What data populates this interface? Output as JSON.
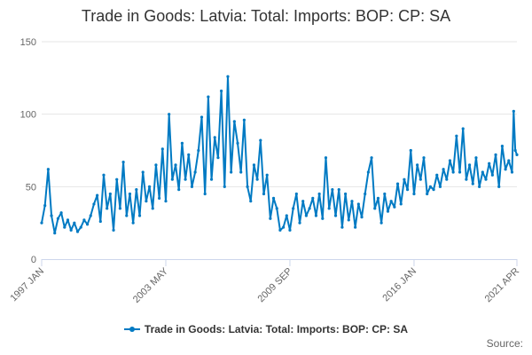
{
  "chart_data": {
    "type": "line",
    "title": "Trade in Goods: Latvia: Total: Imports: BOP: CP: SA",
    "xlabel": "",
    "ylabel": "",
    "ylim": [
      0,
      150
    ],
    "y_ticks": [
      0,
      50,
      100,
      150
    ],
    "x_tick_labels": [
      "1997 JAN",
      "2003 MAY",
      "2009 SEP",
      "2016 JAN",
      "2021 APR"
    ],
    "x_range": [
      "1997-01",
      "2021-04"
    ],
    "x_label_rotation_deg": -45,
    "grid": "horizontal",
    "legend_position": "bottom",
    "marker": "circle",
    "series": [
      {
        "name": "Trade in Goods: Latvia: Total: Imports: BOP: CP: SA",
        "color": "#007ac3",
        "x": [
          "1997-01",
          "1997-03",
          "1997-05",
          "1997-07",
          "1997-09",
          "1997-11",
          "1998-01",
          "1998-03",
          "1998-05",
          "1998-07",
          "1998-09",
          "1998-11",
          "1999-01",
          "1999-03",
          "1999-05",
          "1999-07",
          "1999-09",
          "1999-11",
          "2000-01",
          "2000-03",
          "2000-05",
          "2000-07",
          "2000-09",
          "2000-11",
          "2001-01",
          "2001-03",
          "2001-05",
          "2001-07",
          "2001-09",
          "2001-11",
          "2002-01",
          "2002-03",
          "2002-05",
          "2002-07",
          "2002-09",
          "2002-11",
          "2003-01",
          "2003-03",
          "2003-05",
          "2003-07",
          "2003-09",
          "2003-11",
          "2004-01",
          "2004-03",
          "2004-05",
          "2004-07",
          "2004-09",
          "2004-11",
          "2005-01",
          "2005-03",
          "2005-05",
          "2005-07",
          "2005-09",
          "2005-11",
          "2006-01",
          "2006-03",
          "2006-05",
          "2006-07",
          "2006-09",
          "2006-11",
          "2007-01",
          "2007-03",
          "2007-05",
          "2007-07",
          "2007-09",
          "2007-11",
          "2008-01",
          "2008-03",
          "2008-05",
          "2008-07",
          "2008-09",
          "2008-11",
          "2009-01",
          "2009-03",
          "2009-05",
          "2009-07",
          "2009-09",
          "2009-11",
          "2010-01",
          "2010-03",
          "2010-05",
          "2010-07",
          "2010-09",
          "2010-11",
          "2011-01",
          "2011-03",
          "2011-05",
          "2011-07",
          "2011-09",
          "2011-11",
          "2012-01",
          "2012-03",
          "2012-05",
          "2012-07",
          "2012-09",
          "2012-11",
          "2013-01",
          "2013-03",
          "2013-05",
          "2013-07",
          "2013-09",
          "2013-11",
          "2014-01",
          "2014-03",
          "2014-05",
          "2014-07",
          "2014-09",
          "2014-11",
          "2015-01",
          "2015-03",
          "2015-05",
          "2015-07",
          "2015-09",
          "2015-11",
          "2016-01",
          "2016-03",
          "2016-05",
          "2016-07",
          "2016-09",
          "2016-11",
          "2017-01",
          "2017-03",
          "2017-05",
          "2017-07",
          "2017-09",
          "2017-11",
          "2018-01",
          "2018-03",
          "2018-05",
          "2018-07",
          "2018-09",
          "2018-11",
          "2019-01",
          "2019-03",
          "2019-05",
          "2019-07",
          "2019-09",
          "2019-11",
          "2020-01",
          "2020-03",
          "2020-05",
          "2020-07",
          "2020-09",
          "2020-11",
          "2021-01",
          "2021-02",
          "2021-03",
          "2021-04"
        ],
        "values": [
          25,
          37,
          62,
          30,
          18,
          28,
          32,
          22,
          27,
          20,
          25,
          19,
          22,
          27,
          24,
          30,
          38,
          44,
          26,
          58,
          35,
          45,
          20,
          55,
          35,
          67,
          30,
          45,
          25,
          48,
          30,
          60,
          40,
          50,
          35,
          65,
          42,
          76,
          40,
          100,
          55,
          65,
          48,
          80,
          55,
          72,
          50,
          60,
          75,
          98,
          45,
          112,
          55,
          84,
          70,
          116,
          50,
          126,
          60,
          95,
          80,
          60,
          96,
          50,
          40,
          65,
          55,
          82,
          45,
          58,
          28,
          42,
          35,
          20,
          22,
          30,
          20,
          35,
          45,
          25,
          40,
          30,
          35,
          42,
          30,
          45,
          28,
          70,
          35,
          48,
          30,
          48,
          22,
          45,
          27,
          40,
          22,
          38,
          29,
          45,
          60,
          70,
          35,
          42,
          25,
          45,
          33,
          40,
          36,
          52,
          38,
          55,
          48,
          75,
          45,
          65,
          55,
          70,
          45,
          50,
          48,
          58,
          50,
          62,
          55,
          68,
          60,
          85,
          60,
          90,
          55,
          65,
          52,
          70,
          50,
          60,
          55,
          66,
          58,
          72,
          50,
          78,
          62,
          68,
          60,
          102,
          75,
          72
        ]
      }
    ]
  },
  "source_label": "Source:"
}
